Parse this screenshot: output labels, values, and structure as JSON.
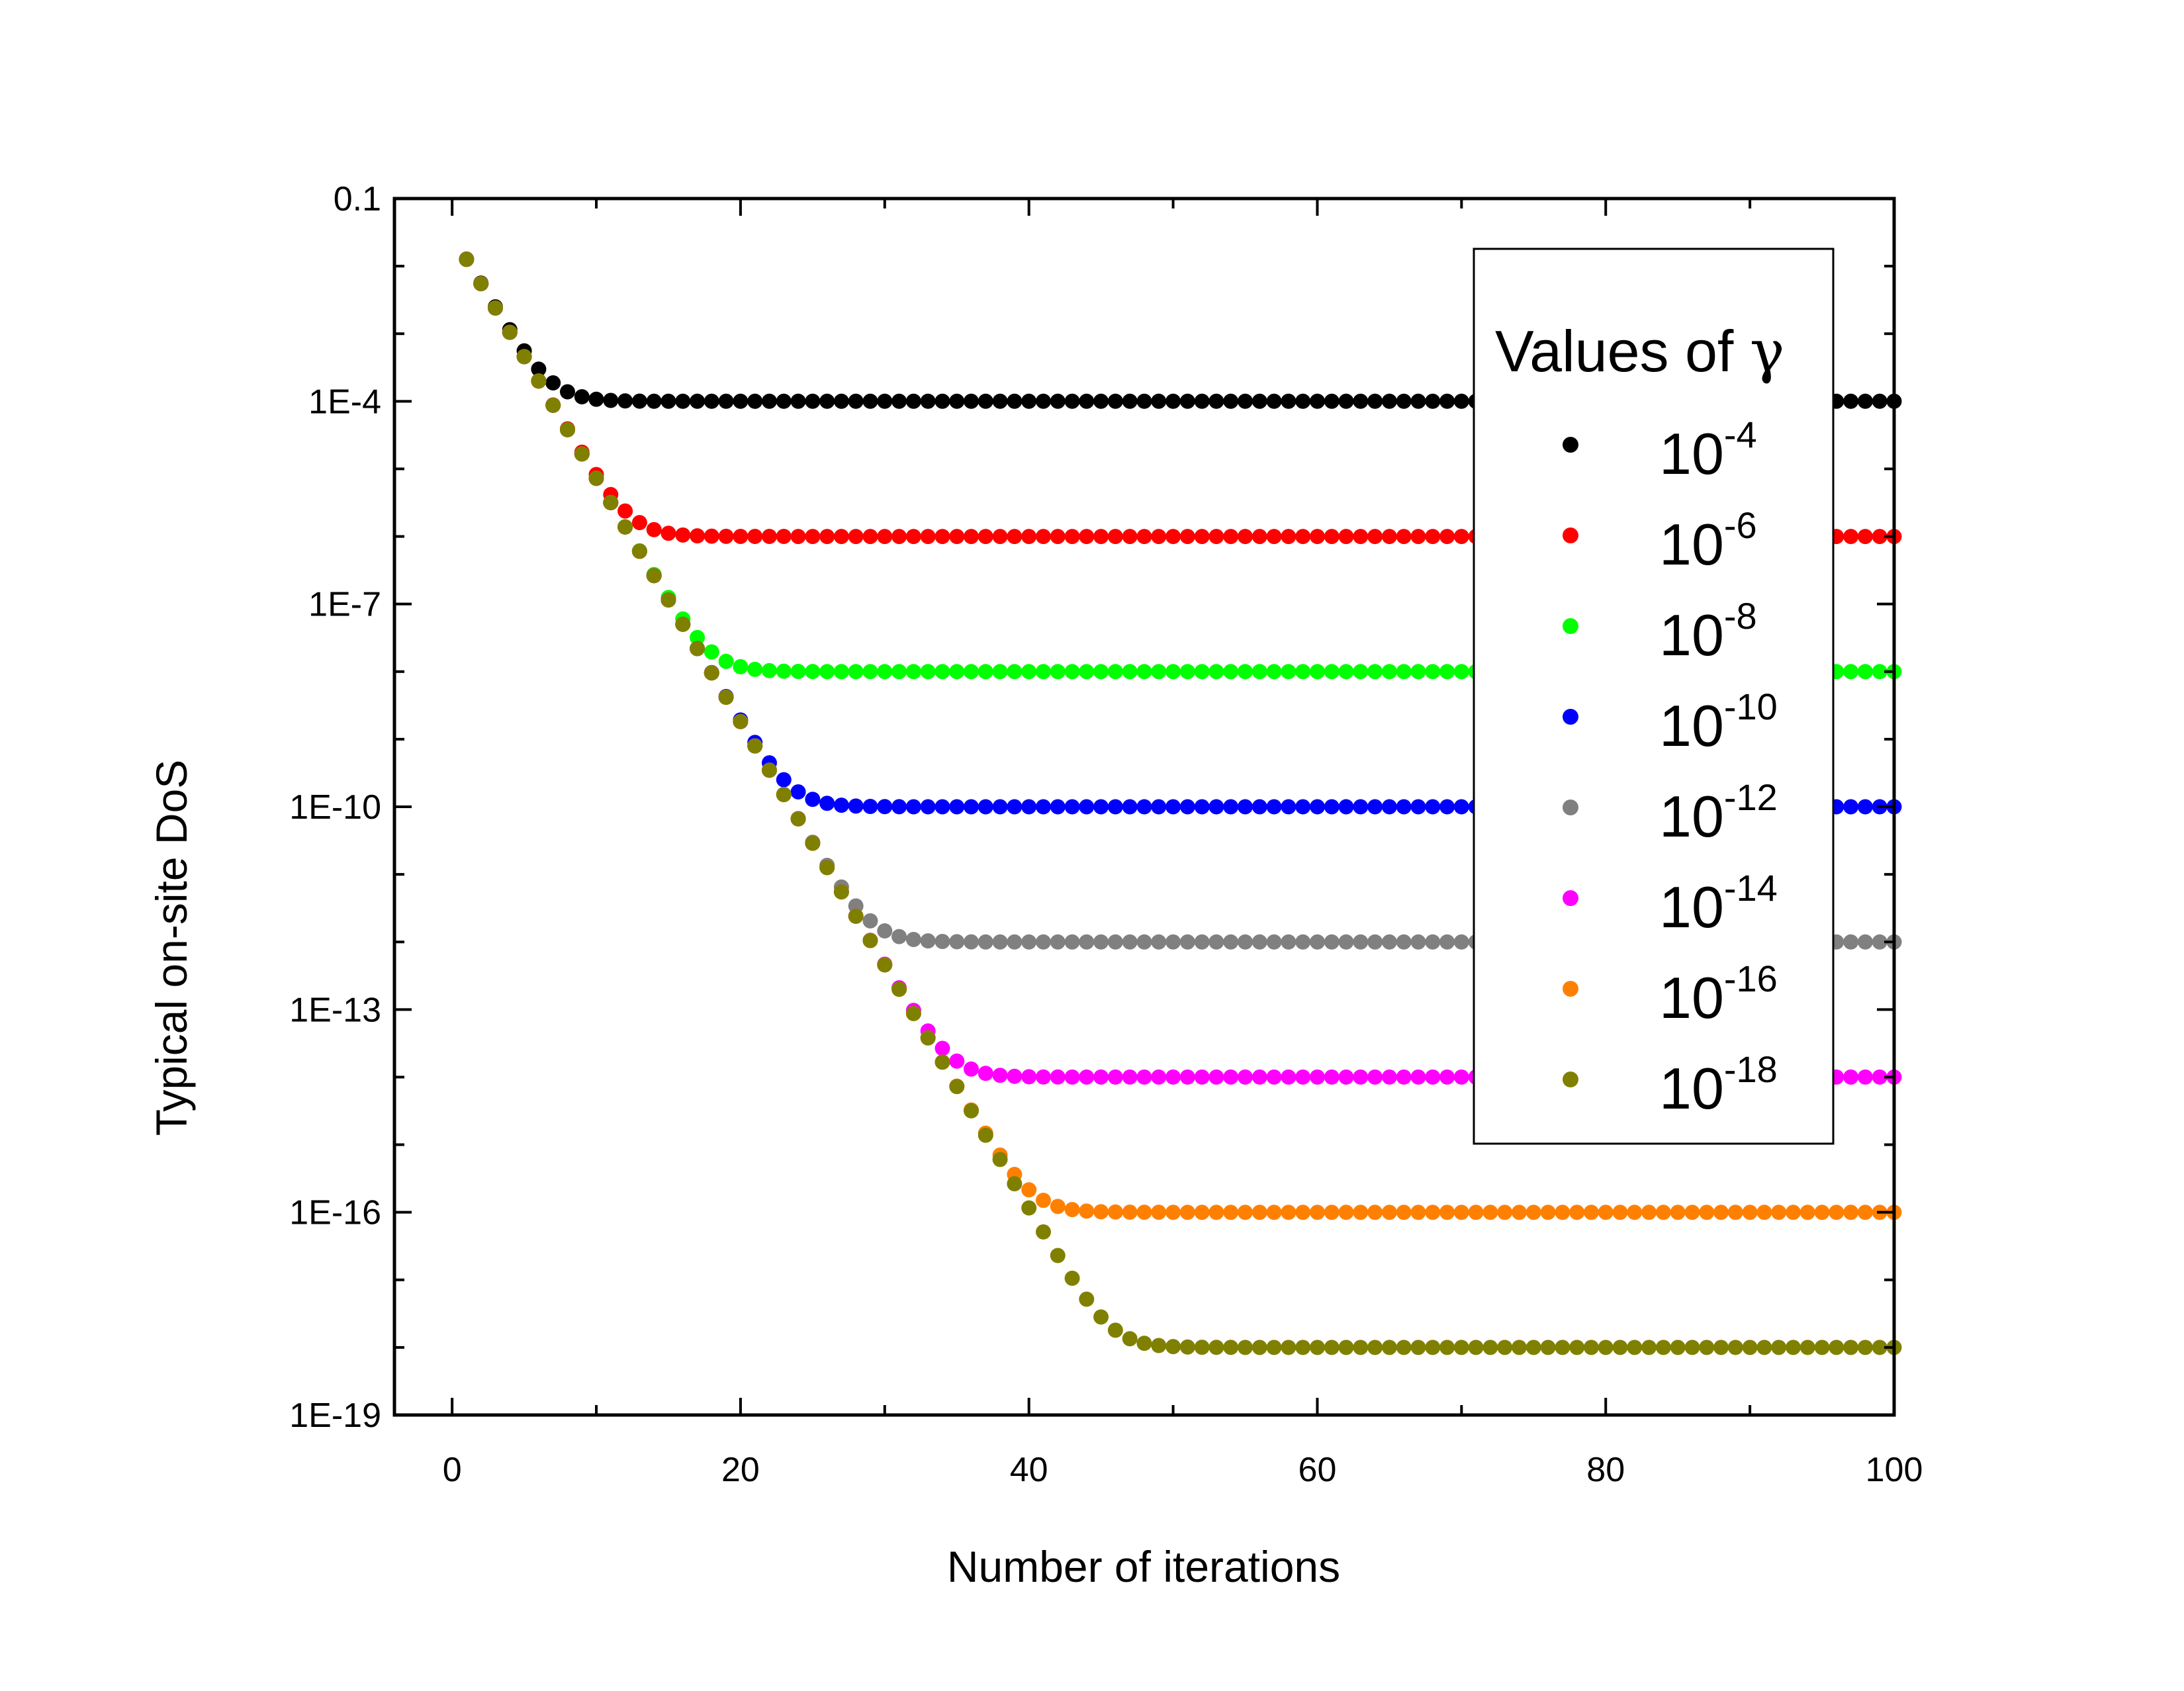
{
  "chart_data": {
    "type": "scatter",
    "xlabel": "Number of iterations",
    "ylabel": "Typical on-site DoS",
    "xlim": [
      -4,
      100
    ],
    "ylim": [
      1e-19,
      0.1
    ],
    "x_scale": "linear",
    "y_scale": "log",
    "x_ticks": [
      0,
      20,
      40,
      60,
      80,
      100
    ],
    "x_tick_labels": [
      "0",
      "20",
      "40",
      "60",
      "80",
      "100"
    ],
    "y_ticks": [
      0.1,
      0.0001,
      1e-07,
      1e-10,
      1e-13,
      1e-16,
      1e-19
    ],
    "y_tick_labels": [
      "0.1",
      "1E-4",
      "1E-7",
      "1E-10",
      "1E-13",
      "1E-16",
      "1E-19"
    ],
    "grid": false,
    "legend": {
      "title_text": "Values of ",
      "title_symbol": "γ",
      "placement": "top-right"
    },
    "x": [
      1,
      100
    ],
    "start_value": 0.0126,
    "decay_rate": 0.36,
    "series": [
      {
        "name_base": "10",
        "name_exp": "-4",
        "color": "#000000",
        "plateau": 0.0001
      },
      {
        "name_base": "10",
        "name_exp": "-6",
        "color": "#ff0000",
        "plateau": 1e-06
      },
      {
        "name_base": "10",
        "name_exp": "-8",
        "color": "#00ff00",
        "plateau": 1e-08
      },
      {
        "name_base": "10",
        "name_exp": "-10",
        "color": "#0000ff",
        "plateau": 1e-10
      },
      {
        "name_base": "10",
        "name_exp": "-12",
        "color": "#808080",
        "plateau": 1e-12
      },
      {
        "name_base": "10",
        "name_exp": "-14",
        "color": "#ff00ff",
        "plateau": 1e-14
      },
      {
        "name_base": "10",
        "name_exp": "-16",
        "color": "#ff8000",
        "plateau": 1e-16
      },
      {
        "name_base": "10",
        "name_exp": "-18",
        "color": "#808000",
        "plateau": 1e-18
      }
    ]
  }
}
